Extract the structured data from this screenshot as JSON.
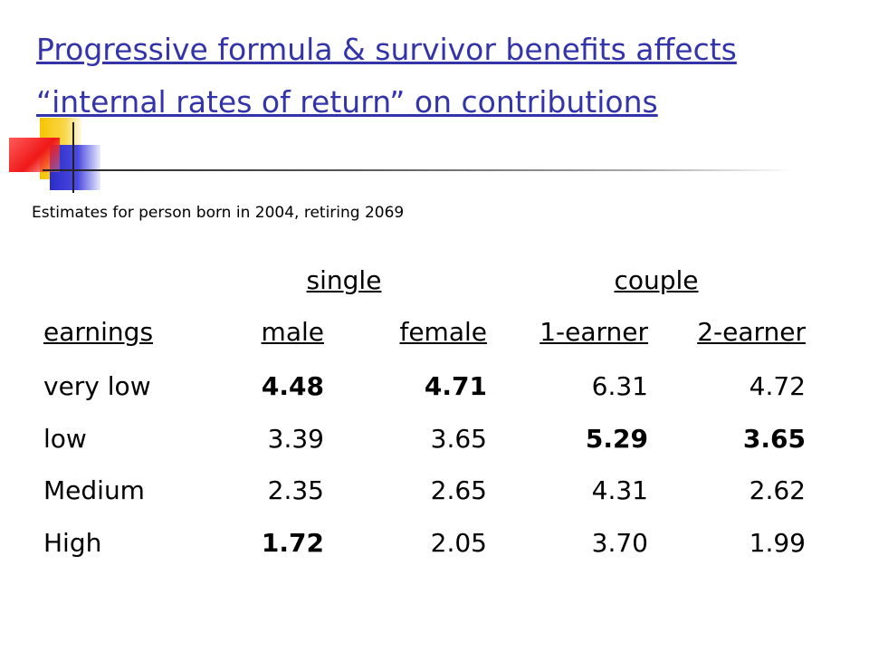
{
  "title": {
    "line1": "Progressive formula & survivor benefits affects",
    "line2": "“internal rates of return” on contributions"
  },
  "subtitle": "Estimates for person born in 2004, retiring 2069",
  "table": {
    "group_headers": [
      "single",
      "couple"
    ],
    "columns": [
      "earnings",
      "male",
      "female",
      "1-earner",
      "2-earner"
    ],
    "rows": [
      [
        "very low",
        "4.48",
        "4.71",
        "6.31",
        "4.72"
      ],
      [
        "low",
        "3.39",
        "3.65",
        "5.29",
        "3.65"
      ],
      [
        "Medium",
        "2.35",
        "2.65",
        "4.31",
        "2.62"
      ],
      [
        "High",
        "1.72",
        "2.05",
        "3.70",
        "1.99"
      ]
    ]
  },
  "colors": {
    "title": "#3333aa",
    "accent_yellow": "#f7c400",
    "accent_blue": "#2c2cc8",
    "accent_red": "#f01818"
  }
}
